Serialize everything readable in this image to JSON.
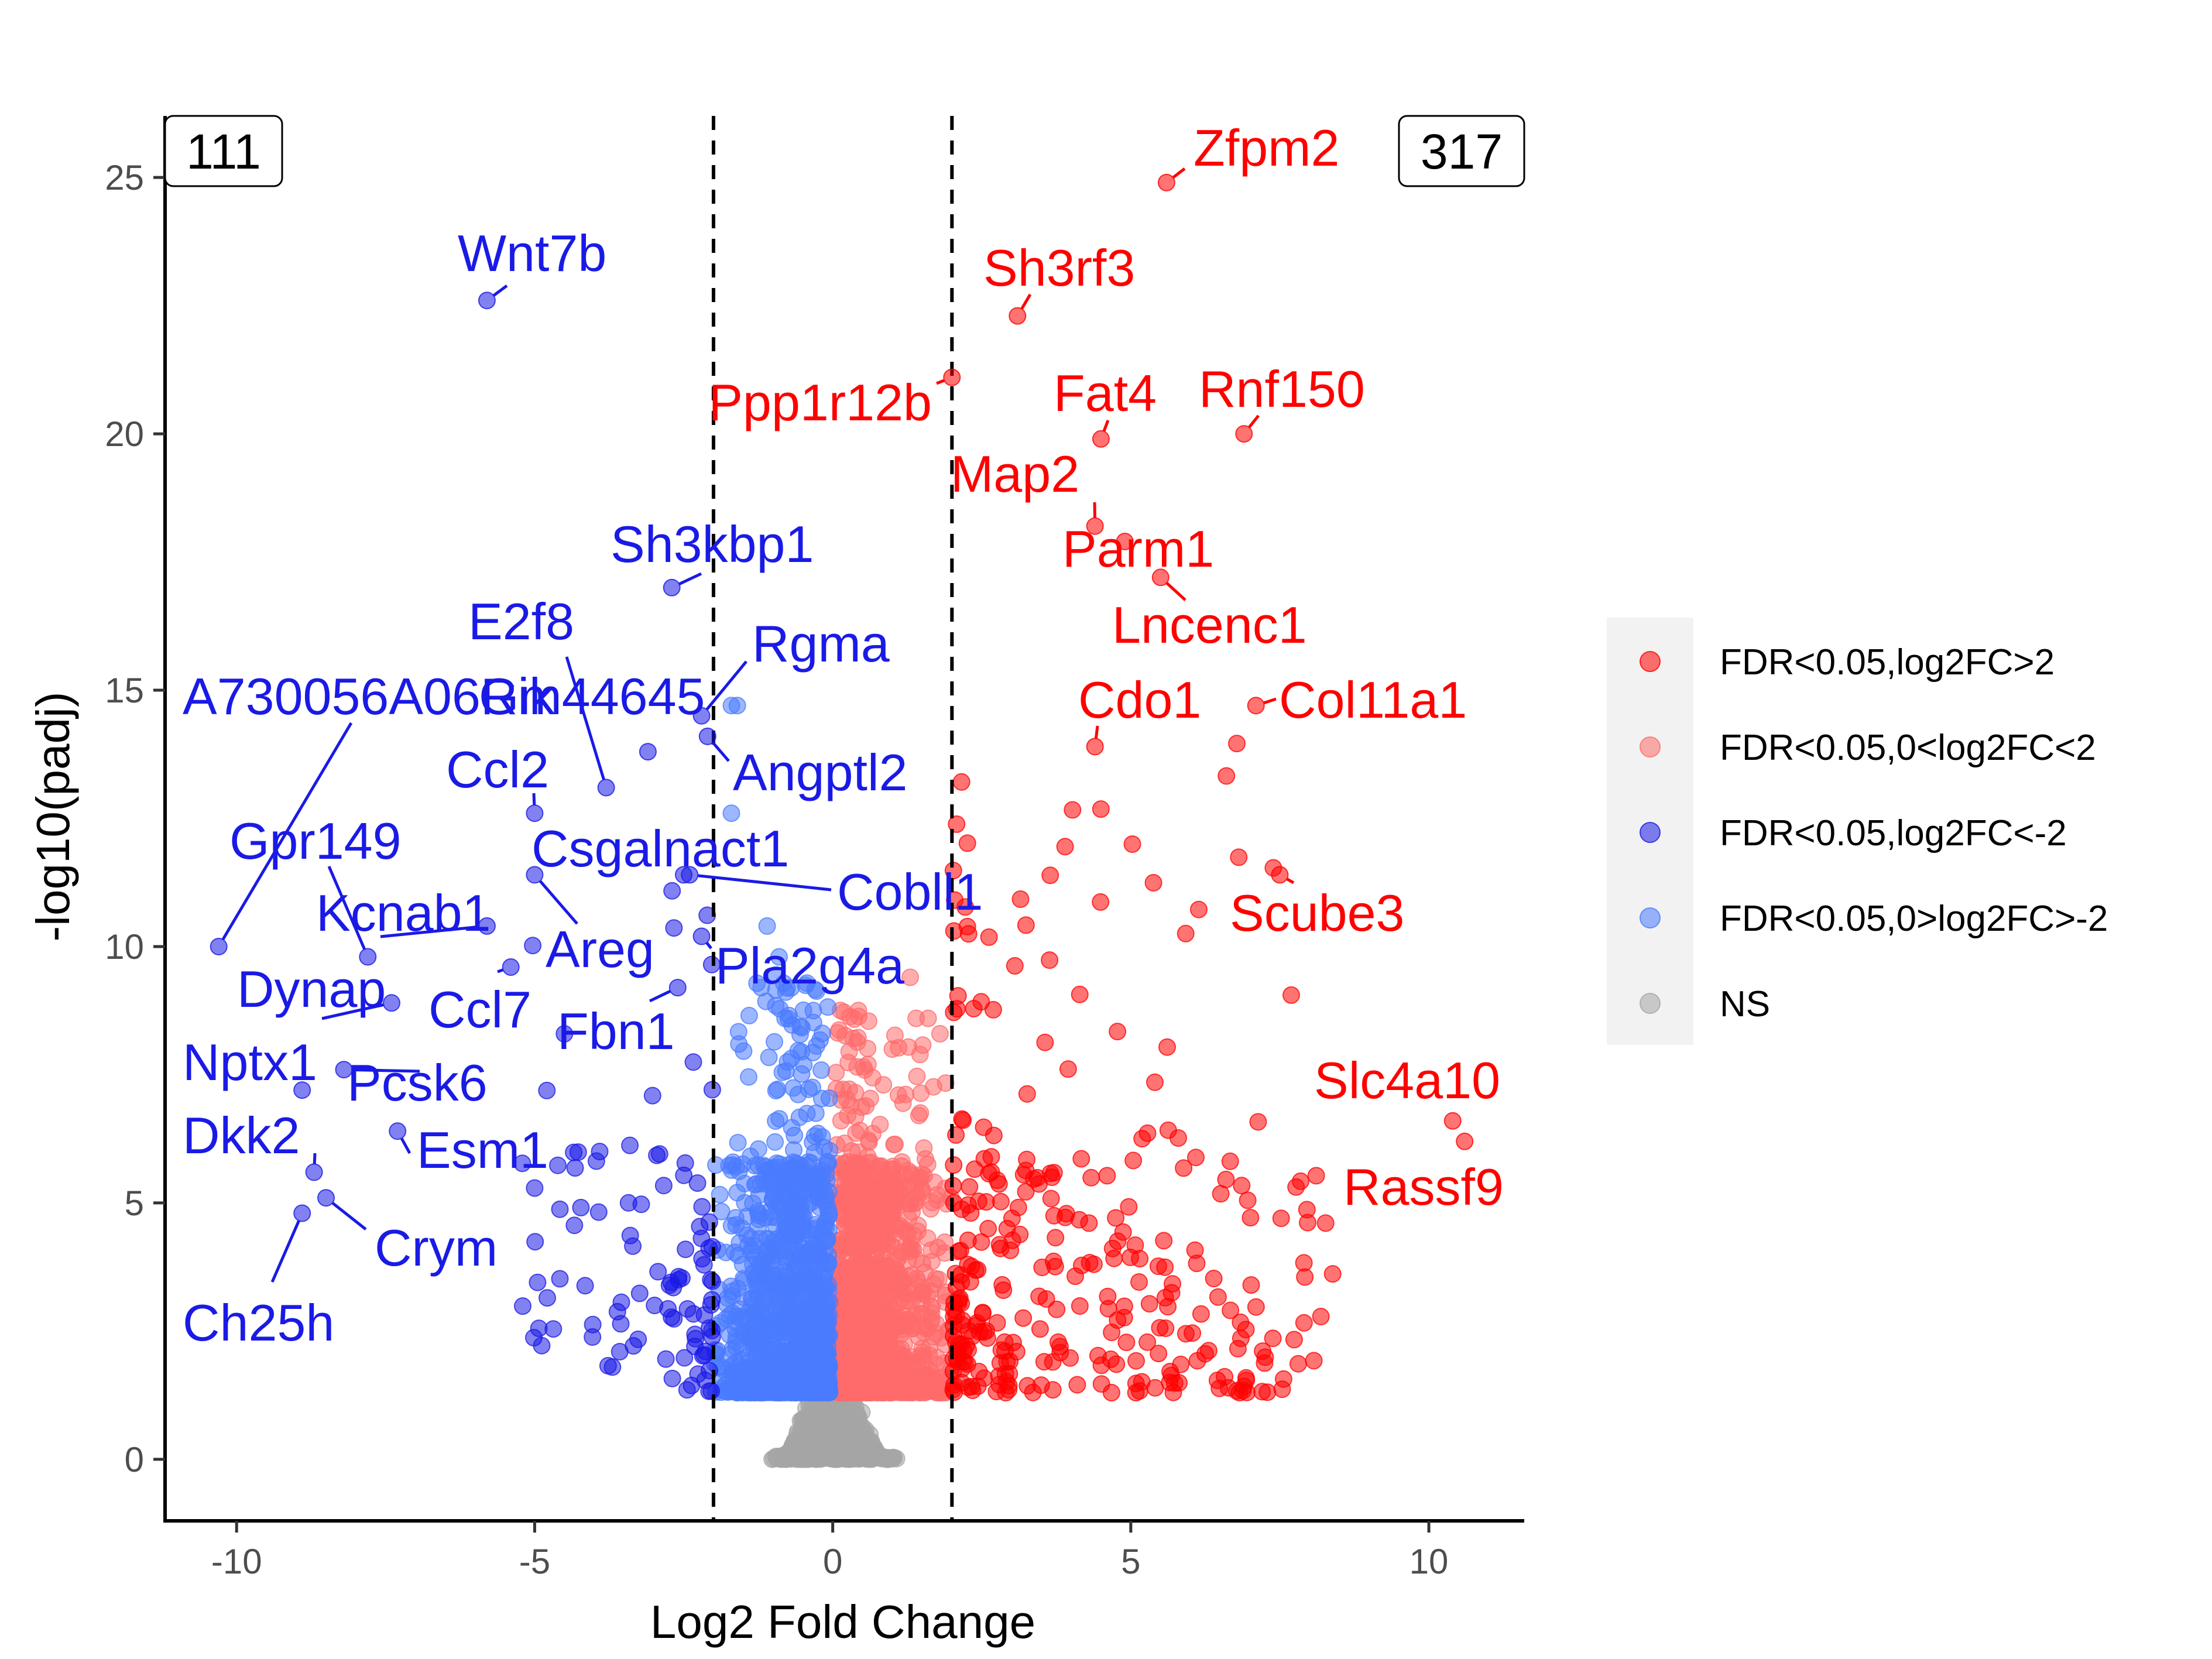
{
  "chart_data": {
    "type": "scatter",
    "title": "",
    "xlabel": "Log2 Fold Change",
    "ylabel": "-log10(padj)",
    "xlim": [
      -11.2,
      11.6
    ],
    "ylim": [
      -1.2,
      26.2
    ],
    "xticks": [
      -10,
      -5,
      0,
      5,
      10
    ],
    "yticks": [
      0,
      5,
      10,
      15,
      20,
      25
    ],
    "xtick_labels": [
      "-10",
      "-5",
      "0",
      "5",
      "10"
    ],
    "ytick_labels": [
      "0",
      "5",
      "10",
      "15",
      "20",
      "25"
    ],
    "grid": false,
    "thresholds": {
      "log2fc": [
        -2,
        2
      ],
      "style": "dashed"
    },
    "legend_position": "right",
    "counts": {
      "down": "111",
      "up": "317"
    },
    "series": [
      {
        "name": "FDR<0.05,log2FC>2",
        "color": "#FF0000",
        "key": "up_strong"
      },
      {
        "name": "FDR<0.05,0<log2FC<2",
        "color": "#FF6B6B",
        "key": "up_weak"
      },
      {
        "name": "FDR<0.05,log2FC<-2",
        "color": "#1A1AE6",
        "key": "down_strong"
      },
      {
        "name": "FDR<0.05,0>log2FC>-2",
        "color": "#4A7BFF",
        "key": "down_weak"
      },
      {
        "name": "NS",
        "color": "#A6A6A6",
        "key": "ns"
      }
    ],
    "labeled_points": [
      {
        "gene": "Zfpm2",
        "x": 5.6,
        "y": 24.9,
        "group": "up_strong"
      },
      {
        "gene": "Sh3rf3",
        "x": 3.1,
        "y": 22.3,
        "group": "up_strong"
      },
      {
        "gene": "Ppp1r12b",
        "x": 2.0,
        "y": 21.1,
        "group": "up_strong"
      },
      {
        "gene": "Fat4",
        "x": 4.5,
        "y": 19.9,
        "group": "up_strong"
      },
      {
        "gene": "Rnf150",
        "x": 6.9,
        "y": 20.0,
        "group": "up_strong"
      },
      {
        "gene": "Map2",
        "x": 4.4,
        "y": 18.2,
        "group": "up_strong"
      },
      {
        "gene": "Parm1",
        "x": 4.9,
        "y": 17.9,
        "group": "up_strong"
      },
      {
        "gene": "Lncenc1",
        "x": 5.5,
        "y": 17.2,
        "group": "up_strong"
      },
      {
        "gene": "Cdo1",
        "x": 4.4,
        "y": 13.9,
        "group": "up_strong"
      },
      {
        "gene": "Col11a1",
        "x": 7.1,
        "y": 14.7,
        "group": "up_strong"
      },
      {
        "gene": "Scube3",
        "x": 7.5,
        "y": 11.4,
        "group": "up_strong"
      },
      {
        "gene": "Slc4a10",
        "x": 10.4,
        "y": 6.6,
        "group": "up_strong"
      },
      {
        "gene": "Rassf9",
        "x": 10.6,
        "y": 6.2,
        "group": "up_strong"
      },
      {
        "gene": "Wnt7b",
        "x": -5.8,
        "y": 22.6,
        "group": "down_strong"
      },
      {
        "gene": "Sh3kbp1",
        "x": -2.7,
        "y": 17.0,
        "group": "down_strong"
      },
      {
        "gene": "E2f8",
        "x": -3.8,
        "y": 13.1,
        "group": "down_strong"
      },
      {
        "gene": "Rgma",
        "x": -2.2,
        "y": 14.5,
        "group": "down_strong"
      },
      {
        "gene": "Angptl2",
        "x": -2.1,
        "y": 14.1,
        "group": "down_strong"
      },
      {
        "gene": "A730056A06Rik",
        "x": -10.3,
        "y": 10.0,
        "group": "down_strong"
      },
      {
        "gene": "Gm44645",
        "x": -3.1,
        "y": 13.8,
        "group": "down_strong"
      },
      {
        "gene": "Ccl2",
        "x": -5.0,
        "y": 12.6,
        "group": "down_strong"
      },
      {
        "gene": "Csgalnact1",
        "x": -2.5,
        "y": 11.4,
        "group": "down_strong"
      },
      {
        "gene": "Cobll1",
        "x": -2.4,
        "y": 11.4,
        "group": "down_strong"
      },
      {
        "gene": "Gpr149",
        "x": -7.8,
        "y": 9.8,
        "group": "down_strong"
      },
      {
        "gene": "Kcnab1",
        "x": -5.8,
        "y": 10.4,
        "group": "down_strong"
      },
      {
        "gene": "Areg",
        "x": -5.0,
        "y": 11.4,
        "group": "down_strong"
      },
      {
        "gene": "Pla2g4a",
        "x": -2.2,
        "y": 10.2,
        "group": "down_strong"
      },
      {
        "gene": "Ccl7",
        "x": -5.4,
        "y": 9.6,
        "group": "down_strong"
      },
      {
        "gene": "Fbn1",
        "x": -2.6,
        "y": 9.2,
        "group": "down_strong"
      },
      {
        "gene": "Dynap",
        "x": -7.4,
        "y": 8.9,
        "group": "down_strong"
      },
      {
        "gene": "Nptx1",
        "x": -8.9,
        "y": 7.2,
        "group": "down_strong"
      },
      {
        "gene": "Pcsk6",
        "x": -8.2,
        "y": 7.6,
        "group": "down_strong"
      },
      {
        "gene": "Esm1",
        "x": -7.3,
        "y": 6.4,
        "group": "down_strong"
      },
      {
        "gene": "Dkk2",
        "x": -8.7,
        "y": 5.6,
        "group": "down_strong"
      },
      {
        "gene": "Crym",
        "x": -8.5,
        "y": 5.1,
        "group": "down_strong"
      },
      {
        "gene": "Ch25h",
        "x": -8.9,
        "y": 4.8,
        "group": "down_strong"
      }
    ]
  }
}
